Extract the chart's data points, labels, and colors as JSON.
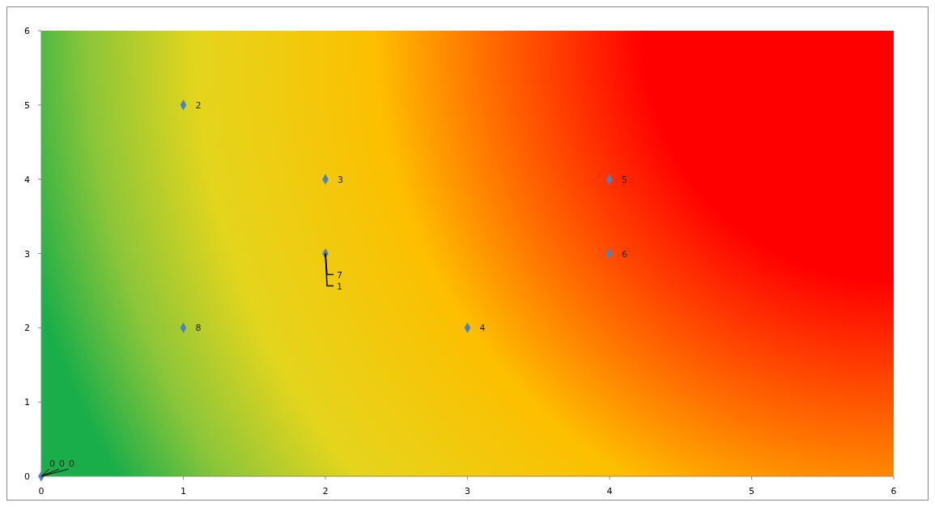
{
  "chart_data": {
    "type": "scatter",
    "xlim": [
      0,
      6
    ],
    "ylim": [
      0,
      6
    ],
    "xticks": [
      0,
      1,
      2,
      3,
      4,
      5,
      6
    ],
    "yticks": [
      0,
      1,
      2,
      3,
      4,
      5,
      6
    ],
    "grid": false,
    "marker": "diamond",
    "series": [
      {
        "color": "#4f81bd",
        "x": [
          2,
          1,
          2,
          3,
          4,
          4,
          1,
          0
        ],
        "values": [
          3,
          5,
          4,
          2,
          4,
          3,
          2,
          0
        ]
      }
    ],
    "annotations": [
      {
        "text": "7",
        "x": 2,
        "y": 3
      },
      {
        "text": "1",
        "x": 2,
        "y": 3
      },
      {
        "text": "2",
        "x": 1,
        "y": 5
      },
      {
        "text": "3",
        "x": 2,
        "y": 4
      },
      {
        "text": "4",
        "x": 3,
        "y": 2
      },
      {
        "text": "5",
        "x": 4,
        "y": 4
      },
      {
        "text": "6",
        "x": 4,
        "y": 3
      },
      {
        "text": "8",
        "x": 1,
        "y": 2
      },
      {
        "text": "0",
        "x": 0,
        "y": 0
      },
      {
        "text": "0",
        "x": 0,
        "y": 0
      },
      {
        "text": "0",
        "x": 0,
        "y": 0
      }
    ]
  }
}
